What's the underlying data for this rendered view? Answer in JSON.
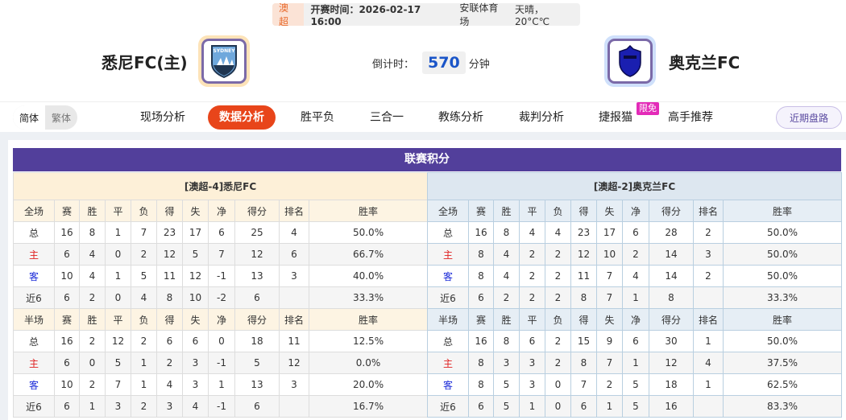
{
  "match": {
    "league": "澳超",
    "time_label": "开赛时间：2026-02-17 16:00",
    "venue": "安联体育场",
    "weather": "天晴， 20°C℃"
  },
  "home_team": {
    "name": "悉尼FC(主)",
    "logo": "sydney-fc-crest"
  },
  "away_team": {
    "name": "奥克兰FC",
    "logo": "auckland-fc-crest"
  },
  "countdown": {
    "label": "倒计时：",
    "value": "570",
    "unit": "分钟"
  },
  "lang": {
    "simplified": "简体",
    "traditional": "繁体"
  },
  "tabs": [
    "现场分析",
    "数据分析",
    "胜平负",
    "三合一",
    "教练分析",
    "裁判分析",
    "捷报猫",
    "高手推荐"
  ],
  "active_tab": "数据分析",
  "promo_badge": "限免",
  "recent_button": "近期盘路",
  "section_title": "联赛积分",
  "colors": {
    "accent": "#e8451a",
    "header": "#523f9b",
    "home": "#e02020",
    "away": "#1a2ad8"
  },
  "columns": [
    "赛",
    "胜",
    "平",
    "负",
    "得",
    "失",
    "净",
    "得分",
    "排名",
    "胜率"
  ],
  "standings": [
    {
      "title": "[澳超-4]悉尼FC",
      "full": {
        "label": "全场",
        "rows": [
          [
            "总",
            "16",
            "8",
            "1",
            "7",
            "23",
            "17",
            "6",
            "25",
            "4",
            "50.0%"
          ],
          [
            "主",
            "6",
            "4",
            "0",
            "2",
            "12",
            "5",
            "7",
            "12",
            "6",
            "66.7%"
          ],
          [
            "客",
            "10",
            "4",
            "1",
            "5",
            "11",
            "12",
            "-1",
            "13",
            "3",
            "40.0%"
          ],
          [
            "近6",
            "6",
            "2",
            "0",
            "4",
            "8",
            "10",
            "-2",
            "6",
            "",
            "33.3%"
          ]
        ]
      },
      "half": {
        "label": "半场",
        "rows": [
          [
            "总",
            "16",
            "2",
            "12",
            "2",
            "6",
            "6",
            "0",
            "18",
            "11",
            "12.5%"
          ],
          [
            "主",
            "6",
            "0",
            "5",
            "1",
            "2",
            "3",
            "-1",
            "5",
            "12",
            "0.0%"
          ],
          [
            "客",
            "10",
            "2",
            "7",
            "1",
            "4",
            "3",
            "1",
            "13",
            "3",
            "20.0%"
          ],
          [
            "近6",
            "6",
            "1",
            "3",
            "2",
            "3",
            "4",
            "-1",
            "6",
            "",
            "16.7%"
          ]
        ]
      }
    },
    {
      "title": "[澳超-2]奥克兰FC",
      "full": {
        "label": "全场",
        "rows": [
          [
            "总",
            "16",
            "8",
            "4",
            "4",
            "23",
            "17",
            "6",
            "28",
            "2",
            "50.0%"
          ],
          [
            "主",
            "8",
            "4",
            "2",
            "2",
            "12",
            "10",
            "2",
            "14",
            "3",
            "50.0%"
          ],
          [
            "客",
            "8",
            "4",
            "2",
            "2",
            "11",
            "7",
            "4",
            "14",
            "2",
            "50.0%"
          ],
          [
            "近6",
            "6",
            "2",
            "2",
            "2",
            "8",
            "7",
            "1",
            "8",
            "",
            "33.3%"
          ]
        ]
      },
      "half": {
        "label": "半场",
        "rows": [
          [
            "总",
            "16",
            "8",
            "6",
            "2",
            "15",
            "9",
            "6",
            "30",
            "1",
            "50.0%"
          ],
          [
            "主",
            "8",
            "3",
            "3",
            "2",
            "8",
            "7",
            "1",
            "12",
            "4",
            "37.5%"
          ],
          [
            "客",
            "8",
            "5",
            "3",
            "0",
            "7",
            "2",
            "5",
            "18",
            "1",
            "62.5%"
          ],
          [
            "近6",
            "6",
            "5",
            "1",
            "0",
            "6",
            "1",
            "5",
            "16",
            "",
            "83.3%"
          ]
        ]
      }
    }
  ]
}
